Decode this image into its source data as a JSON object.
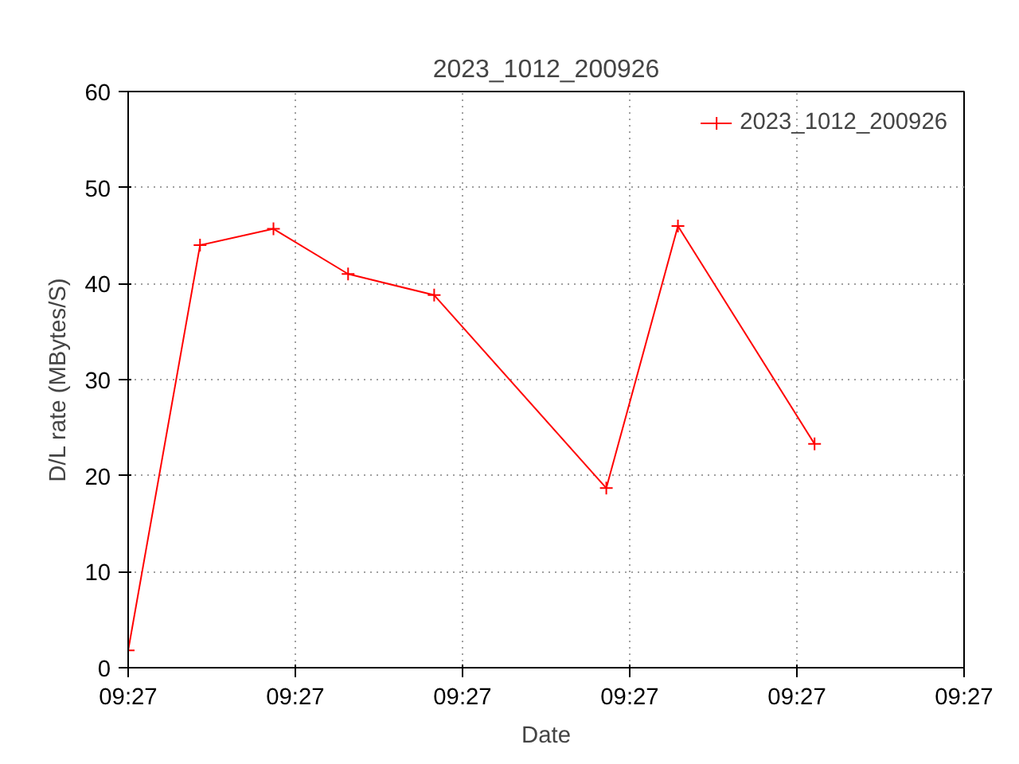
{
  "chart_data": {
    "type": "line",
    "title": "2023_1012_200926",
    "xlabel": "Date",
    "ylabel": "D/L rate (MBytes/S)",
    "x": [
      9.443056,
      9.44425,
      9.44547,
      9.44671,
      9.44814,
      9.451,
      9.45219,
      9.45446
    ],
    "series": [
      {
        "name": "2023_1012_200926",
        "color": "#ff0000",
        "values": [
          1.8,
          44,
          45.7,
          41,
          38.8,
          18.7,
          46,
          23.3
        ]
      }
    ],
    "xlim": [
      9.443056,
      9.456944
    ],
    "xticks": [
      {
        "value": 9.443056,
        "label": "09:27"
      },
      {
        "value": 9.445833,
        "label": "09:27"
      },
      {
        "value": 9.448611,
        "label": "09:27"
      },
      {
        "value": 9.451389,
        "label": "09:27"
      },
      {
        "value": 9.454167,
        "label": "09:27"
      },
      {
        "value": 9.456944,
        "label": "09:27"
      }
    ],
    "ylim": [
      0,
      60
    ],
    "yticks": [
      0,
      10,
      20,
      30,
      40,
      50,
      60
    ],
    "grid": true,
    "legend": "top right",
    "marker": "cross",
    "line_style": "solid"
  }
}
